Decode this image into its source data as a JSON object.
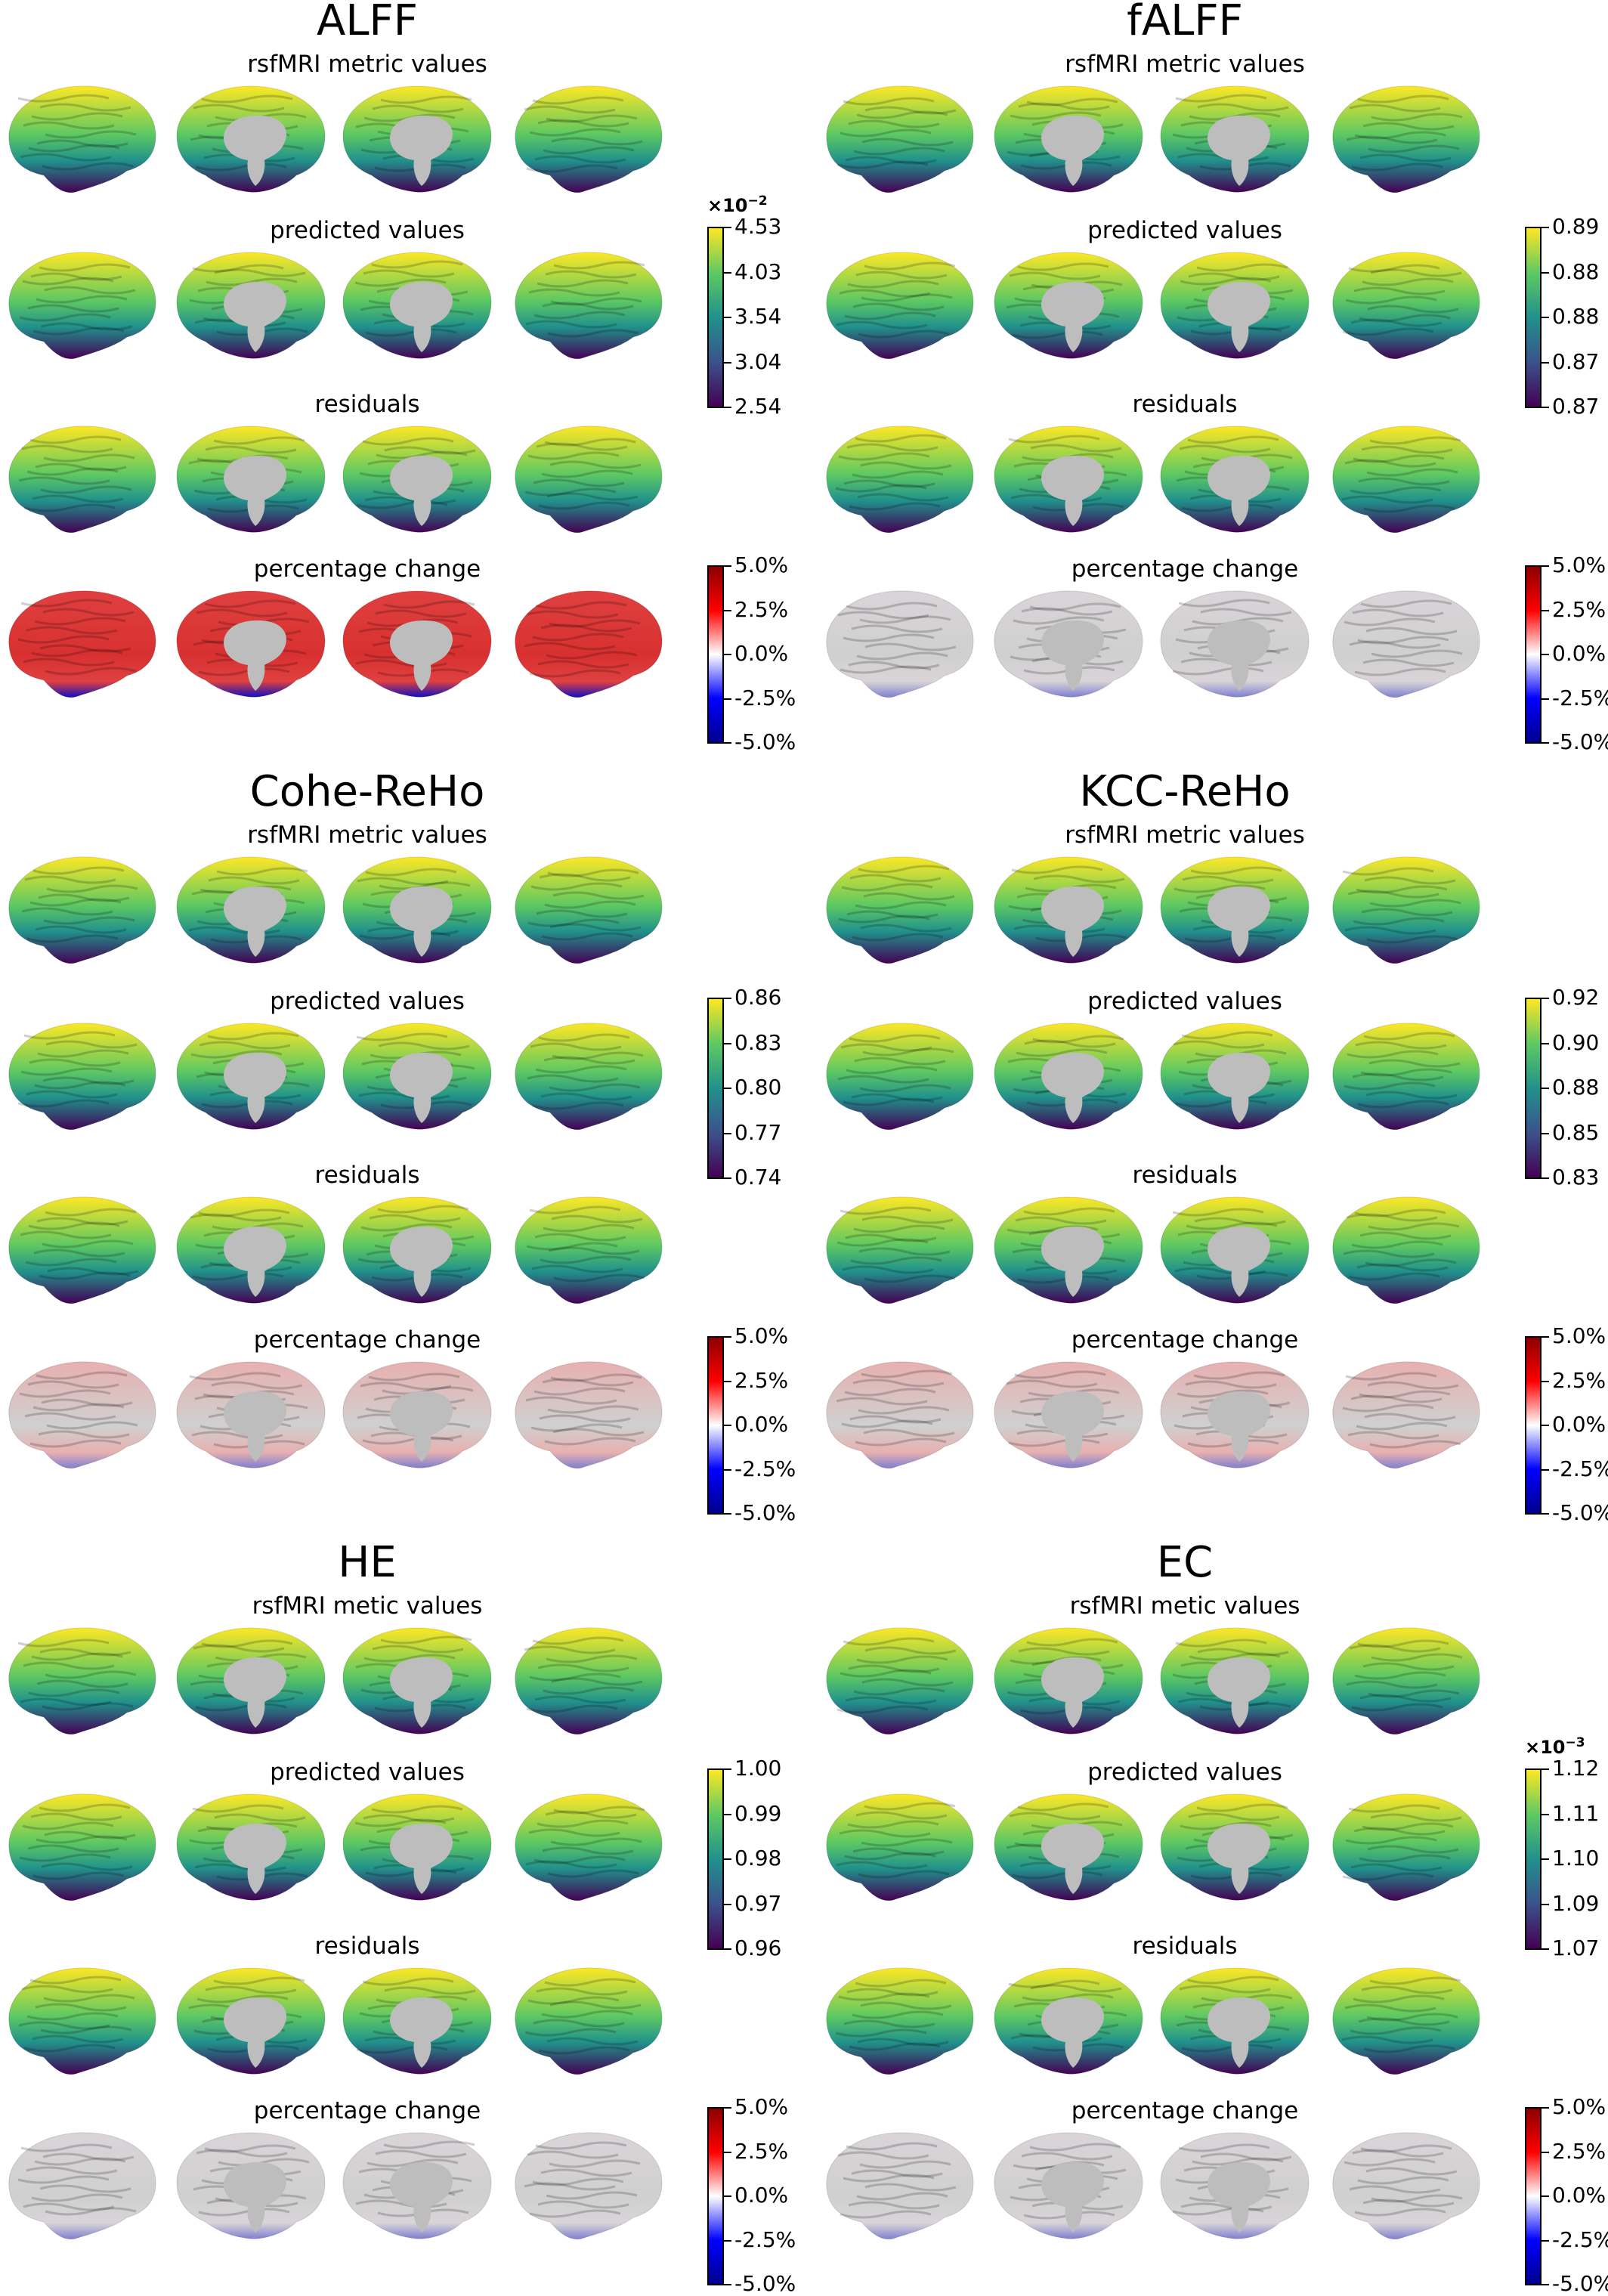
{
  "colors": {
    "viridis": [
      "#440154",
      "#3b528b",
      "#21918c",
      "#5ec962",
      "#fde725"
    ],
    "diverging": [
      "#00008b",
      "#0000ff",
      "#ffffff",
      "#ff0000",
      "#8b0000"
    ],
    "brain_gray": "#d0d0d0",
    "medial_wall": "#bdbdbd"
  },
  "panels": [
    {
      "title": "ALFF",
      "rows": [
        {
          "label": "rsfMRI metric values",
          "map": "viridis",
          "level": 0.55
        },
        {
          "label": "predicted values",
          "map": "viridis",
          "level": 0.62
        },
        {
          "label": "residuals",
          "map": "viridis",
          "level": 0.55
        },
        {
          "label": "percentage change",
          "map": "div",
          "level": 0.9
        }
      ],
      "cbar_value": {
        "exponent": "×10",
        "exp": "−2",
        "ticks": [
          "4.53",
          "4.03",
          "3.54",
          "3.04",
          "2.54"
        ]
      },
      "cbar_pct": {
        "ticks": [
          "5.0%",
          "2.5%",
          "0.0%",
          "-2.5%",
          "-5.0%"
        ]
      }
    },
    {
      "title": "fALFF",
      "rows": [
        {
          "label": "rsfMRI metric values",
          "map": "viridis",
          "level": 0.55
        },
        {
          "label": "predicted values",
          "map": "viridis",
          "level": 0.5
        },
        {
          "label": "residuals",
          "map": "viridis",
          "level": 0.55
        },
        {
          "label": "percentage change",
          "map": "div",
          "level": 0.05
        }
      ],
      "cbar_value": {
        "exponent": "",
        "exp": "",
        "ticks": [
          "0.89",
          "0.88",
          "0.88",
          "0.87",
          "0.87"
        ]
      },
      "cbar_pct": {
        "ticks": [
          "5.0%",
          "2.5%",
          "0.0%",
          "-2.5%",
          "-5.0%"
        ]
      }
    },
    {
      "title": "Cohe-ReHo",
      "rows": [
        {
          "label": "rsfMRI metric values",
          "map": "viridis",
          "level": 0.55
        },
        {
          "label": "predicted values",
          "map": "viridis",
          "level": 0.5
        },
        {
          "label": "residuals",
          "map": "viridis",
          "level": 0.55
        },
        {
          "label": "percentage change",
          "map": "div",
          "level": 0.35
        }
      ],
      "cbar_value": {
        "exponent": "",
        "exp": "",
        "ticks": [
          "0.86",
          "0.83",
          "0.80",
          "0.77",
          "0.74"
        ]
      },
      "cbar_pct": {
        "ticks": [
          "5.0%",
          "2.5%",
          "0.0%",
          "-2.5%",
          "-5.0%"
        ]
      }
    },
    {
      "title": "KCC-ReHo",
      "rows": [
        {
          "label": "rsfMRI metric values",
          "map": "viridis",
          "level": 0.55
        },
        {
          "label": "predicted values",
          "map": "viridis",
          "level": 0.5
        },
        {
          "label": "residuals",
          "map": "viridis",
          "level": 0.55
        },
        {
          "label": "percentage change",
          "map": "div",
          "level": 0.35
        }
      ],
      "cbar_value": {
        "exponent": "",
        "exp": "",
        "ticks": [
          "0.92",
          "0.90",
          "0.88",
          "0.85",
          "0.83"
        ]
      },
      "cbar_pct": {
        "ticks": [
          "5.0%",
          "2.5%",
          "0.0%",
          "-2.5%",
          "-5.0%"
        ]
      }
    },
    {
      "title": "HE",
      "rows": [
        {
          "label": "rsfMRI metic values",
          "map": "viridis",
          "level": 0.55
        },
        {
          "label": "predicted values",
          "map": "viridis",
          "level": 0.6
        },
        {
          "label": "residuals",
          "map": "viridis",
          "level": 0.55
        },
        {
          "label": "percentage change",
          "map": "div",
          "level": 0.15
        }
      ],
      "cbar_value": {
        "exponent": "",
        "exp": "",
        "ticks": [
          "1.00",
          "0.99",
          "0.98",
          "0.97",
          "0.96"
        ]
      },
      "cbar_pct": {
        "ticks": [
          "5.0%",
          "2.5%",
          "0.0%",
          "-2.5%",
          "-5.0%"
        ]
      }
    },
    {
      "title": "EC",
      "rows": [
        {
          "label": "rsfMRI metic values",
          "map": "viridis",
          "level": 0.55
        },
        {
          "label": "predicted values",
          "map": "viridis",
          "level": 0.5
        },
        {
          "label": "residuals",
          "map": "viridis",
          "level": 0.55
        },
        {
          "label": "percentage change",
          "map": "div",
          "level": 0.05
        }
      ],
      "cbar_value": {
        "exponent": "×10",
        "exp": "−3",
        "ticks": [
          "1.12",
          "1.11",
          "1.10",
          "1.09",
          "1.07"
        ]
      },
      "cbar_pct": {
        "ticks": [
          "5.0%",
          "2.5%",
          "0.0%",
          "-2.5%",
          "-5.0%"
        ]
      }
    }
  ]
}
